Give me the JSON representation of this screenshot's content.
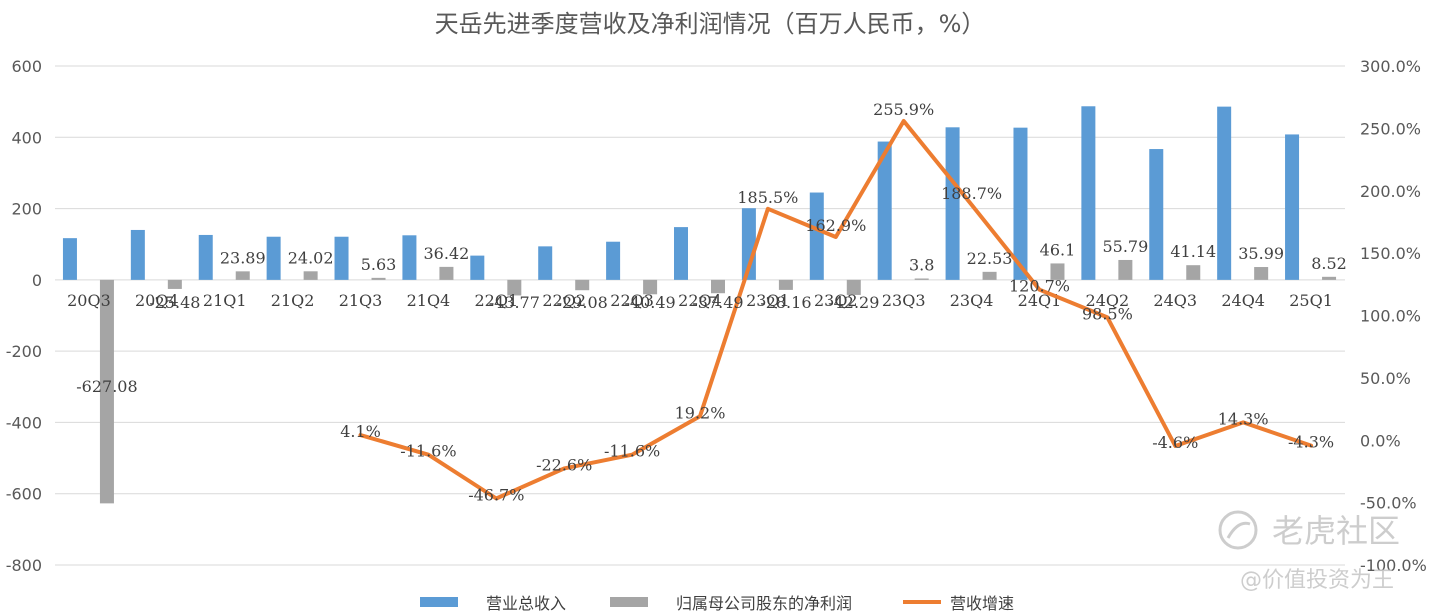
{
  "chart_data": {
    "type": "bar",
    "title": "天岳先进季度营收及净利润情况（百万人民币，%）",
    "categories": [
      "20Q3",
      "20Q4",
      "21Q1",
      "21Q2",
      "21Q3",
      "21Q4",
      "22Q1",
      "22Q2",
      "22Q3",
      "22Q4",
      "23Q1",
      "23Q2",
      "23Q3",
      "23Q4",
      "24Q1",
      "24Q2",
      "24Q3",
      "24Q4",
      "25Q1"
    ],
    "left_axis": {
      "ylim": [
        -800,
        600
      ],
      "ticks": [
        "600",
        "400",
        "200",
        "0",
        "-200",
        "-400",
        "-600",
        "-800"
      ]
    },
    "right_axis": {
      "ylim": [
        -100,
        300
      ],
      "ticks": [
        "300.0%",
        "250.0%",
        "200.0%",
        "150.0%",
        "100.0%",
        "50.0%",
        "0.0%",
        "-50.0%",
        "-100.0%"
      ]
    },
    "legend_position": "bottom",
    "series": [
      {
        "name": "营业总收入",
        "kind": "bar",
        "axis": "left",
        "color": "#5b9bd5",
        "values": [
          117,
          140,
          126,
          121,
          121,
          125,
          68,
          94,
          107,
          148,
          201,
          245,
          388,
          428,
          427,
          487,
          367,
          486,
          408
        ]
      },
      {
        "name": "归属母公司股东的净利润",
        "kind": "bar",
        "axis": "left",
        "color": "#a5a5a5",
        "values": [
          -627.08,
          -25.48,
          23.89,
          24.02,
          5.63,
          36.42,
          -43.77,
          -29.08,
          -40.49,
          -37.49,
          -28.16,
          -42.29,
          3.8,
          22.53,
          46.1,
          55.79,
          41.14,
          35.99,
          8.52
        ],
        "labels": [
          "-627.08",
          "-25.48",
          "23.89",
          "24.02",
          "5.63",
          "36.42",
          "-43.77",
          "-29.08",
          "-40.49",
          "-37.49",
          "-28.16",
          "-42.29",
          "3.8",
          "22.53",
          "46.1",
          "55.79",
          "41.14",
          "35.99",
          "8.52"
        ]
      },
      {
        "name": "营收增速",
        "kind": "line",
        "axis": "right",
        "color": "#ed7d31",
        "values": [
          null,
          null,
          null,
          null,
          4.1,
          -11.6,
          -46.7,
          -22.6,
          -11.6,
          19.2,
          185.5,
          162.9,
          255.9,
          188.7,
          120.7,
          98.5,
          -4.6,
          14.3,
          -4.3
        ],
        "labels": [
          null,
          null,
          null,
          null,
          "4.1%",
          "-11.6%",
          "-46.7%",
          "-22.6%",
          "-11.6%",
          "19.2%",
          "185.5%",
          "162.9%",
          "255.9%",
          "188.7%",
          "120.7%",
          "98.5%",
          "-4.6%",
          "14.3%",
          "-4.3%"
        ]
      }
    ]
  },
  "watermark": {
    "brand": "老虎社区",
    "handle": "@价值投资为王"
  }
}
